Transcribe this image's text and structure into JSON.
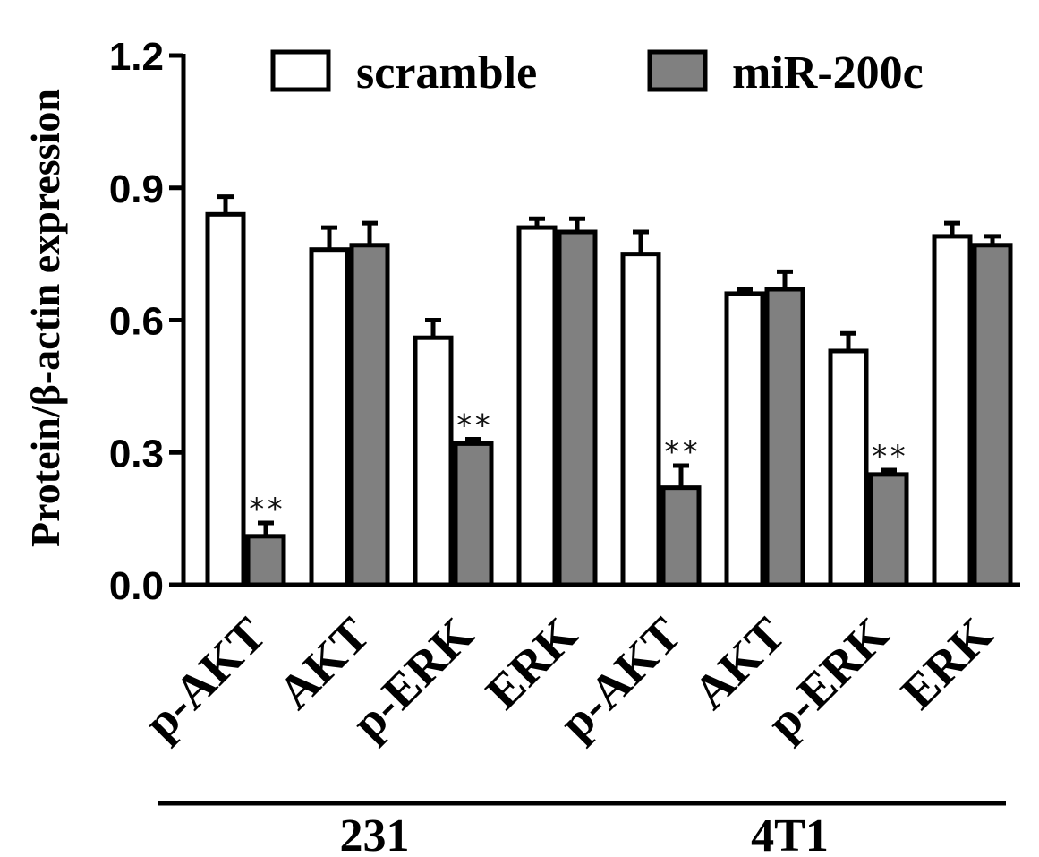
{
  "chart_data": {
    "type": "bar",
    "ylabel": "Protein/β-actin expression",
    "ylim": [
      0,
      1.2
    ],
    "yticks": [
      "0.0",
      "0.3",
      "0.6",
      "0.9",
      "1.2"
    ],
    "categories": [
      "p-AKT",
      "AKT",
      "p-ERK",
      "ERK",
      "p-AKT",
      "AKT",
      "p-ERK",
      "ERK"
    ],
    "groups": [
      {
        "label": "231",
        "categories": [
          0,
          1,
          2,
          3
        ]
      },
      {
        "label": "4T1",
        "categories": [
          4,
          5,
          6,
          7
        ]
      }
    ],
    "series": [
      {
        "name": "scramble",
        "color": "#ffffff",
        "values": [
          0.84,
          0.76,
          0.56,
          0.81,
          0.75,
          0.66,
          0.53,
          0.79
        ],
        "errors": [
          0.04,
          0.05,
          0.04,
          0.02,
          0.05,
          0.01,
          0.04,
          0.03
        ]
      },
      {
        "name": "miR-200c",
        "color": "#808080",
        "values": [
          0.11,
          0.77,
          0.32,
          0.8,
          0.22,
          0.67,
          0.25,
          0.77
        ],
        "errors": [
          0.03,
          0.05,
          0.01,
          0.03,
          0.05,
          0.04,
          0.01,
          0.02
        ]
      }
    ],
    "significance": [
      {
        "category": 0,
        "series": 1,
        "label": "**"
      },
      {
        "category": 2,
        "series": 1,
        "label": "**"
      },
      {
        "category": 4,
        "series": 1,
        "label": "**"
      },
      {
        "category": 6,
        "series": 1,
        "label": "**"
      }
    ],
    "legend_position": "top",
    "grid": false
  }
}
